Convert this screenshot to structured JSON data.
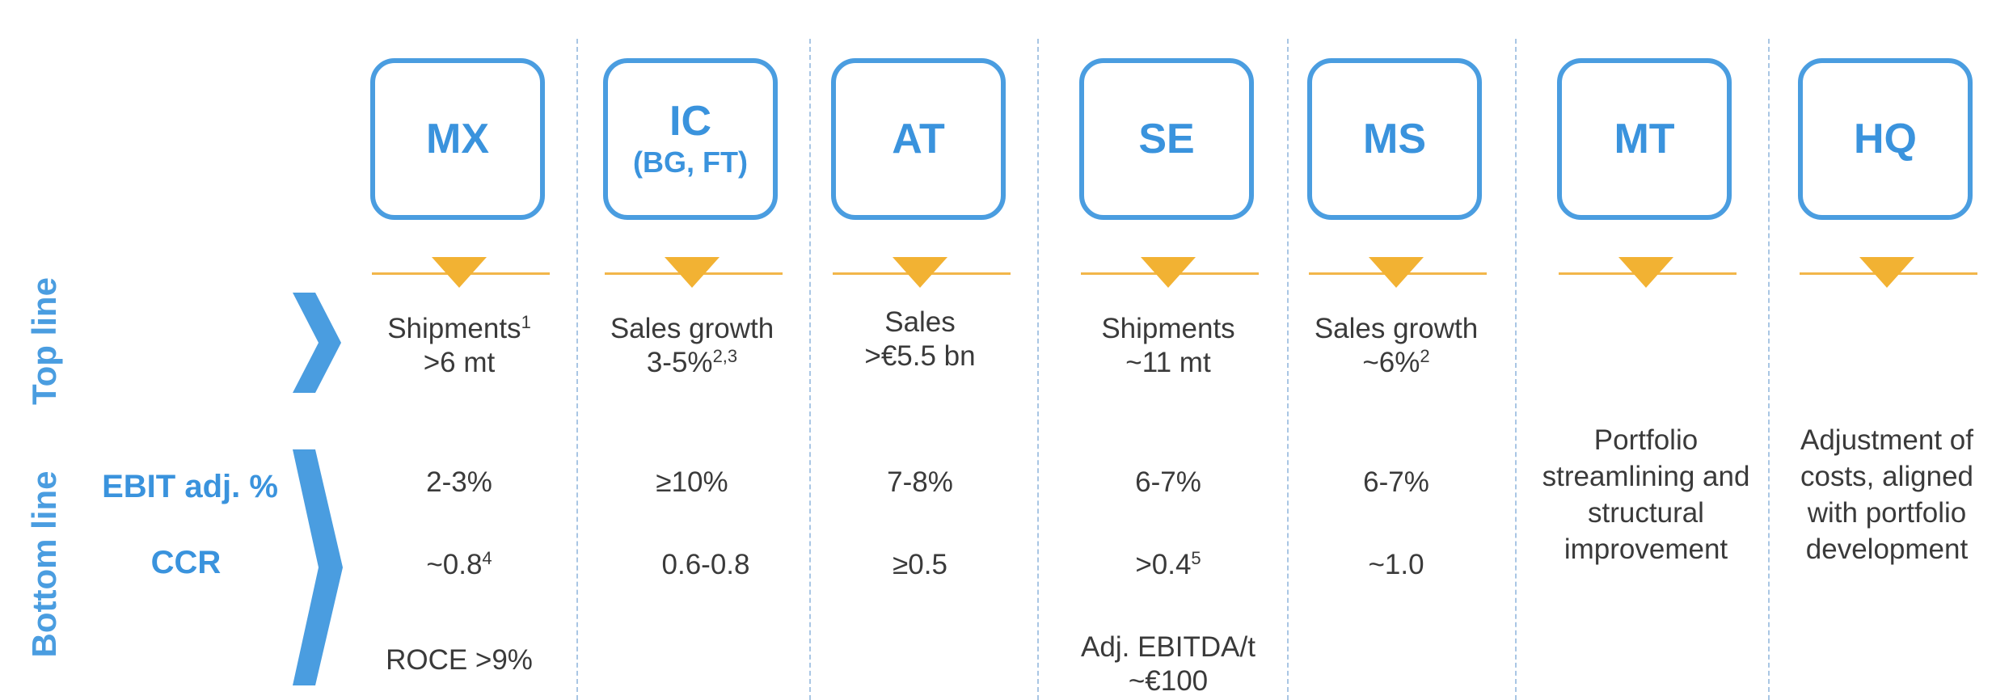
{
  "side_labels": {
    "top": "Top line",
    "bottom": "Bottom line"
  },
  "metric_labels": {
    "ebit": "EBIT adj. %",
    "ccr": "CCR"
  },
  "segments": [
    {
      "title": "MX",
      "subtitle": "",
      "top_line": {
        "label": "Shipments",
        "label_sup": "1",
        "value": ">6 mt",
        "value_sup": ""
      },
      "ebit": "2-3%",
      "ccr": {
        "value": "~0.8",
        "sup": "4"
      },
      "extra": {
        "line1": "ROCE >9%",
        "line2": ""
      }
    },
    {
      "title": "IC",
      "subtitle": "(BG, FT)",
      "top_line": {
        "label": "Sales growth",
        "label_sup": "",
        "value": "3-5%",
        "value_sup": "2,3"
      },
      "ebit": "≥10%",
      "ccr": {
        "value": "0.6-0.8",
        "sup": ""
      },
      "extra": {
        "line1": "",
        "line2": ""
      }
    },
    {
      "title": "AT",
      "subtitle": "",
      "top_line": {
        "label": "Sales",
        "label_sup": "",
        "value": ">€5.5 bn",
        "value_sup": ""
      },
      "ebit": "7-8%",
      "ccr": {
        "value": "≥0.5",
        "sup": ""
      },
      "extra": {
        "line1": "",
        "line2": ""
      }
    },
    {
      "title": "SE",
      "subtitle": "",
      "top_line": {
        "label": "Shipments",
        "label_sup": "",
        "value": "~11 mt",
        "value_sup": ""
      },
      "ebit": "6-7%",
      "ccr": {
        "value": ">0.4",
        "sup": "5"
      },
      "extra": {
        "line1": "Adj. EBITDA/t",
        "line2": "~€100"
      }
    },
    {
      "title": "MS",
      "subtitle": "",
      "top_line": {
        "label": "Sales growth",
        "label_sup": "",
        "value": "~6%",
        "value_sup": "2"
      },
      "ebit": "6-7%",
      "ccr": {
        "value": "~1.0",
        "sup": ""
      },
      "extra": {
        "line1": "",
        "line2": ""
      }
    },
    {
      "title": "MT",
      "subtitle": "",
      "bottom_text": [
        "Portfolio",
        "streamlining and",
        "structural",
        "improvement"
      ]
    },
    {
      "title": "HQ",
      "subtitle": "",
      "bottom_text": [
        "Adjustment of",
        "costs, aligned",
        "with portfolio",
        "development"
      ]
    }
  ],
  "colors": {
    "accent_blue": "#4a9de0",
    "accent_yellow": "#f2b233",
    "text": "#3a3a3a"
  }
}
